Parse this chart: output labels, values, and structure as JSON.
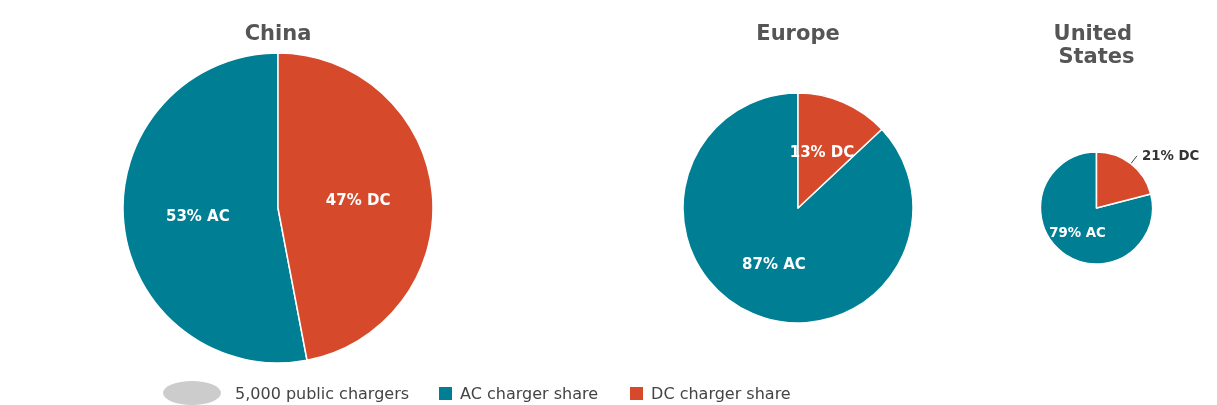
{
  "chart_data": [
    {
      "type": "pie",
      "title": "China",
      "categories": [
        "AC charger share",
        "DC charger share"
      ],
      "values": [
        53,
        47
      ],
      "colors": [
        "#007f94",
        "#d64a2b"
      ],
      "value_labels": [
        "53% AC",
        "47% DC"
      ],
      "legend": "bottom",
      "annotations": [
        "5,000 public chargers"
      ]
    },
    {
      "type": "pie",
      "title": "Europe",
      "categories": [
        null,
        null
      ],
      "values": [
        87,
        13
      ],
      "colors": [
        "#007f94",
        "#d64a2b"
      ],
      "value_labels": [
        "87% AC",
        "13% DC"
      ]
    },
    {
      "type": "pie",
      "title": "United States",
      "categories": [
        null,
        null
      ],
      "values": [
        79,
        21
      ],
      "colors": [
        "#007f94",
        "#d64a2b"
      ],
      "value_labels": [
        "79% AC",
        "21% DC"
      ]
    }
  ]
}
